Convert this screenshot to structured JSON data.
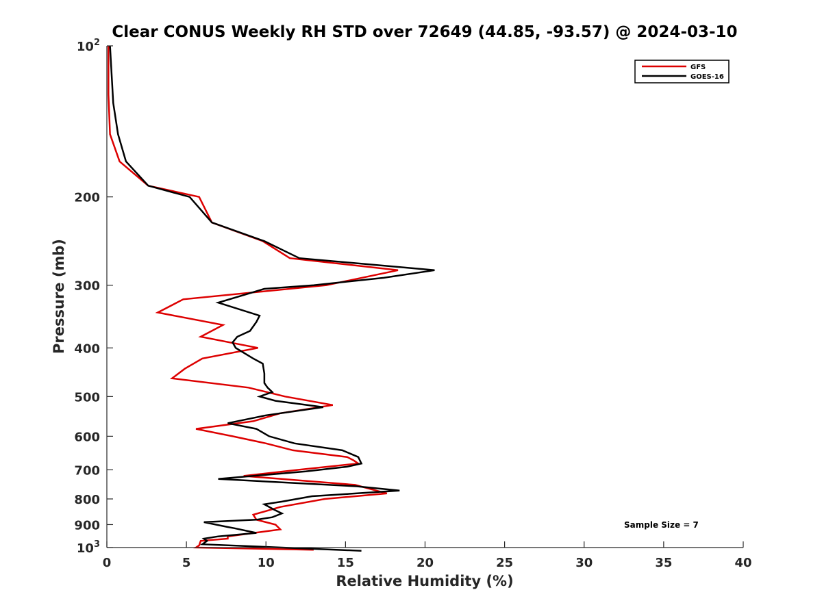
{
  "chart_data": {
    "type": "line",
    "title": "Clear CONUS Weekly RH STD over 72649 (44.85, -93.57) @ 2024-03-10",
    "xlabel": "Relative Humidity (%)",
    "ylabel": "Pressure (mb)",
    "xlim": [
      0,
      40
    ],
    "ylim": [
      100,
      1000
    ],
    "yscale": "log",
    "y_reversed": true,
    "grid": false,
    "legend_position": "top-right",
    "x_ticks": [
      "0",
      "5",
      "10",
      "15",
      "20",
      "25",
      "30",
      "35",
      "40"
    ],
    "y_ticks": [
      {
        "value": 100,
        "base": "10",
        "exp": "2"
      },
      {
        "value": 200,
        "label": "200"
      },
      {
        "value": 300,
        "label": "300"
      },
      {
        "value": 400,
        "label": "400"
      },
      {
        "value": 500,
        "label": "500"
      },
      {
        "value": 600,
        "label": "600"
      },
      {
        "value": 700,
        "label": "700"
      },
      {
        "value": 800,
        "label": "800"
      },
      {
        "value": 900,
        "label": "900"
      },
      {
        "value": 1000,
        "base": "10",
        "exp": "3"
      }
    ],
    "annotation": "Sample Size = 7",
    "series": [
      {
        "name": "GFS",
        "color": "#dd0000",
        "points": [
          [
            0.1,
            100
          ],
          [
            0.1,
            125
          ],
          [
            0.2,
            150
          ],
          [
            0.8,
            170
          ],
          [
            2.6,
            190
          ],
          [
            5.8,
            200
          ],
          [
            6.6,
            225
          ],
          [
            9.8,
            245
          ],
          [
            11.5,
            265
          ],
          [
            18.3,
            280
          ],
          [
            13.8,
            300
          ],
          [
            4.8,
            320
          ],
          [
            3.2,
            340
          ],
          [
            7.3,
            360
          ],
          [
            5.9,
            380
          ],
          [
            9.5,
            400
          ],
          [
            6.0,
            420
          ],
          [
            4.9,
            440
          ],
          [
            4.1,
            460
          ],
          [
            8.9,
            480
          ],
          [
            11.2,
            500
          ],
          [
            14.2,
            520
          ],
          [
            10.9,
            540
          ],
          [
            9.2,
            560
          ],
          [
            5.6,
            580
          ],
          [
            7.9,
            600
          ],
          [
            10.0,
            620
          ],
          [
            11.7,
            640
          ],
          [
            15.1,
            660
          ],
          [
            15.5,
            670
          ],
          [
            15.8,
            680
          ],
          [
            12.0,
            700
          ],
          [
            8.6,
            720
          ],
          [
            15.6,
            750
          ],
          [
            17.6,
            780
          ],
          [
            13.7,
            800
          ],
          [
            10.9,
            830
          ],
          [
            9.2,
            860
          ],
          [
            9.4,
            880
          ],
          [
            10.6,
            900
          ],
          [
            10.9,
            920
          ],
          [
            7.6,
            950
          ],
          [
            7.6,
            960
          ],
          [
            5.9,
            970
          ],
          [
            5.8,
            990
          ],
          [
            5.6,
            1000
          ],
          [
            13.0,
            1010
          ]
        ]
      },
      {
        "name": "GOES-16",
        "color": "#000000",
        "points": [
          [
            0.2,
            100
          ],
          [
            0.4,
            130
          ],
          [
            0.7,
            150
          ],
          [
            1.2,
            170
          ],
          [
            2.6,
            190
          ],
          [
            5.2,
            200
          ],
          [
            6.6,
            225
          ],
          [
            9.9,
            245
          ],
          [
            12.1,
            265
          ],
          [
            20.6,
            280
          ],
          [
            17.4,
            290
          ],
          [
            13.0,
            300
          ],
          [
            9.9,
            305
          ],
          [
            7.0,
            325
          ],
          [
            9.6,
            345
          ],
          [
            9.4,
            355
          ],
          [
            9.0,
            370
          ],
          [
            8.2,
            380
          ],
          [
            7.9,
            390
          ],
          [
            8.1,
            400
          ],
          [
            9.2,
            420
          ],
          [
            9.8,
            430
          ],
          [
            9.9,
            450
          ],
          [
            9.9,
            470
          ],
          [
            10.1,
            480
          ],
          [
            10.4,
            490
          ],
          [
            9.6,
            500
          ],
          [
            10.6,
            510
          ],
          [
            13.6,
            525
          ],
          [
            10.0,
            545
          ],
          [
            7.6,
            565
          ],
          [
            9.4,
            580
          ],
          [
            10.2,
            600
          ],
          [
            11.8,
            620
          ],
          [
            14.8,
            640
          ],
          [
            15.8,
            660
          ],
          [
            16.0,
            680
          ],
          [
            15.1,
            690
          ],
          [
            12.5,
            705
          ],
          [
            7.0,
            730
          ],
          [
            15.7,
            755
          ],
          [
            18.4,
            770
          ],
          [
            12.9,
            790
          ],
          [
            11.0,
            810
          ],
          [
            9.9,
            820
          ],
          [
            10.5,
            840
          ],
          [
            11.0,
            855
          ],
          [
            10.4,
            870
          ],
          [
            9.4,
            880
          ],
          [
            6.1,
            890
          ],
          [
            7.6,
            910
          ],
          [
            8.0,
            915
          ],
          [
            9.4,
            935
          ],
          [
            7.0,
            950
          ],
          [
            6.1,
            960
          ],
          [
            6.3,
            970
          ],
          [
            6.0,
            985
          ],
          [
            16.0,
            1015
          ]
        ]
      }
    ]
  }
}
